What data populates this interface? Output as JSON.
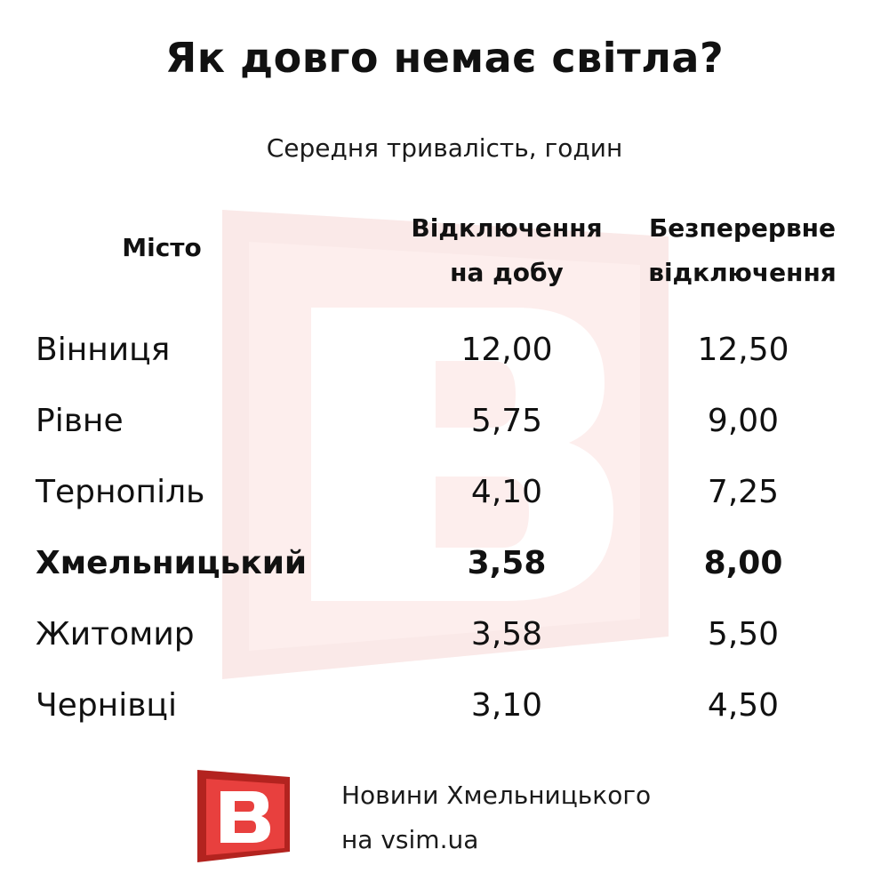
{
  "title": "Як довго немає світла?",
  "subtitle": "Середня тривалість, годин",
  "icons": {
    "watermark": "vsim-logo-watermark-icon",
    "logo": "vsim-logo-icon"
  },
  "colors": {
    "brand_red": "#e8403e",
    "brand_dark_red": "#b3231f",
    "watermark_tint": "#fbe7e6"
  },
  "chart_data": {
    "type": "table",
    "columns": [
      "Місто",
      "Відключення на добу",
      "Безперервне відключення"
    ],
    "header": {
      "city": "Місто",
      "daily_line1": "Відключення",
      "daily_line2": "на добу",
      "cont_line1": "Безперервне",
      "cont_line2": "відключення"
    },
    "rows": [
      {
        "city": "Вінниця",
        "daily": "12,00",
        "continuous": "12,50",
        "highlight": false
      },
      {
        "city": "Рівне",
        "daily": "5,75",
        "continuous": "9,00",
        "highlight": false
      },
      {
        "city": "Тернопіль",
        "daily": "4,10",
        "continuous": "7,25",
        "highlight": false
      },
      {
        "city": "Хмельницький",
        "daily": "3,58",
        "continuous": "8,00",
        "highlight": true
      },
      {
        "city": "Житомир",
        "daily": "3,58",
        "continuous": "5,50",
        "highlight": false
      },
      {
        "city": "Чернівці",
        "daily": "3,10",
        "continuous": "4,50",
        "highlight": false
      }
    ]
  },
  "footer": {
    "line1": "Новини Хмельницького",
    "line2": "на vsim.ua"
  }
}
